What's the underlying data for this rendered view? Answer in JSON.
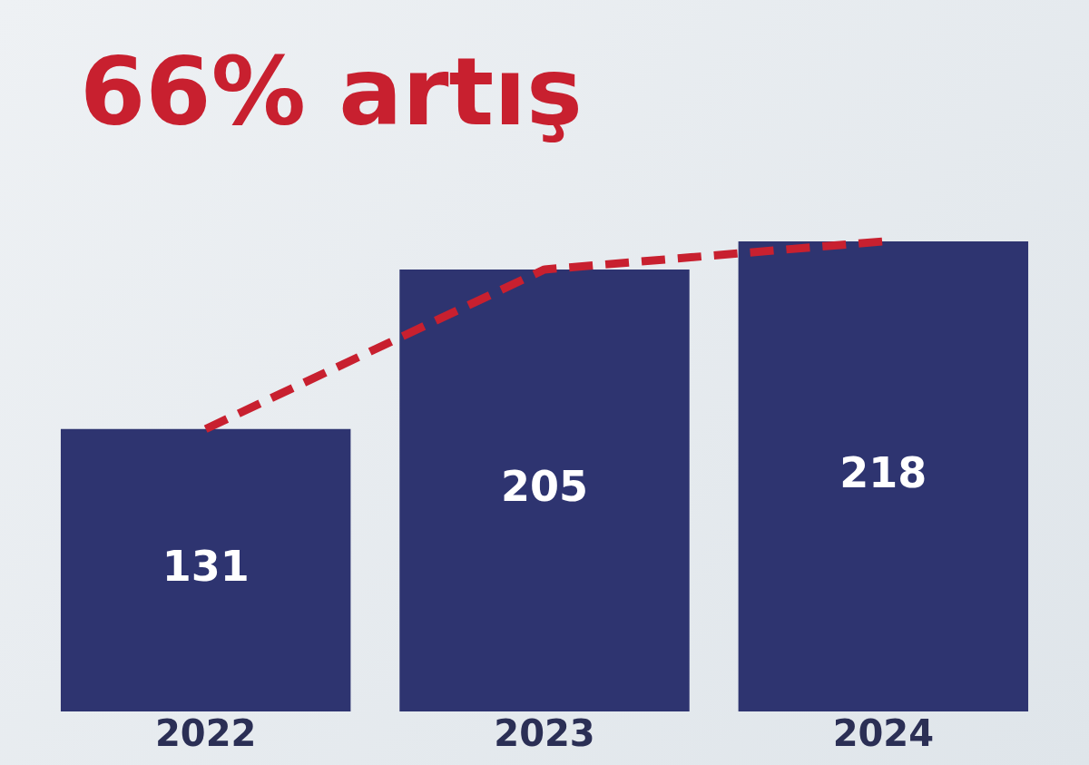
{
  "chart_data": {
    "type": "bar",
    "title": "66% artış",
    "categories": [
      "2022",
      "2023",
      "2024"
    ],
    "series": [
      {
        "color": "#2e3470",
        "values": [
          131,
          205,
          218
        ],
        "value_labels": [
          "131",
          "205",
          "218"
        ]
      },
      {
        "type": "line",
        "color": "#c8202f",
        "values": [
          131,
          205,
          218
        ],
        "line_style": "dashed",
        "marker": "none"
      }
    ],
    "tick_labels": "x",
    "grid": false,
    "legend": false
  }
}
